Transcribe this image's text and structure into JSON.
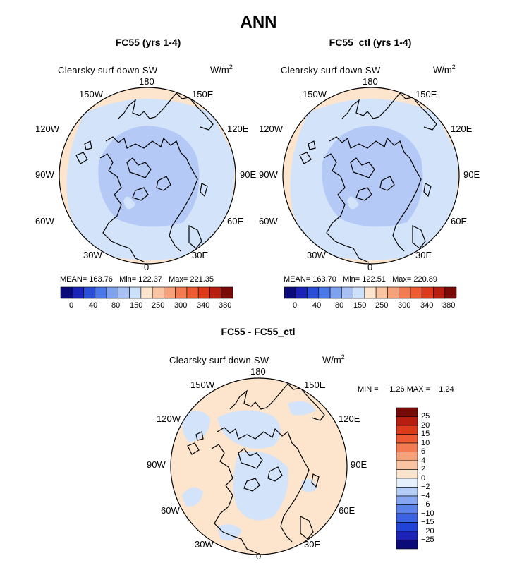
{
  "main_title": "ANN",
  "colors": {
    "abs_palette": [
      "#0a0a78",
      "#1a22b8",
      "#2a4ed8",
      "#4a78e8",
      "#7ea2ee",
      "#a8c0f2",
      "#cde0fa",
      "#fde4cc",
      "#f8c4a2",
      "#f5a27a",
      "#f27b52",
      "#ee5a32",
      "#dc3a1a",
      "#b81e10",
      "#7a0a08"
    ],
    "diff_palette": [
      "#0a0a78",
      "#1a22b8",
      "#2244d6",
      "#3b62e2",
      "#5a80ea",
      "#86a6f2",
      "#b4cdf6",
      "#e6f0fc",
      "#fde4cc",
      "#f8c4a2",
      "#f5a27a",
      "#f27b52",
      "#ee5a32",
      "#dc3a1a",
      "#b81e10",
      "#7a0a08"
    ],
    "coast": "#000000"
  },
  "panels": [
    {
      "title": "FC55 (yrs 1-4)",
      "variable": "Clearsky surf down SW",
      "units_base": "W/m",
      "units_exp": "2",
      "longitudes": [
        "180",
        "150E",
        "120E",
        "90E",
        "60E",
        "30E",
        "0",
        "30W",
        "60W",
        "90W",
        "120W",
        "150W"
      ],
      "stats": "MEAN= 163.76   Min= 122.37   Max= 221.35",
      "colorbar_labels": [
        "0",
        "40",
        "80",
        "150",
        "250",
        "300",
        "340",
        "380"
      ]
    },
    {
      "title": "FC55_ctl (yrs 1-4)",
      "variable": "Clearsky surf down SW",
      "units_base": "W/m",
      "units_exp": "2",
      "longitudes": [
        "180",
        "150E",
        "120E",
        "90E",
        "60E",
        "30E",
        "0",
        "30W",
        "60W",
        "90W",
        "120W",
        "150W"
      ],
      "stats": "MEAN= 163.70   Min= 122.51   Max= 220.89",
      "colorbar_labels": [
        "0",
        "40",
        "80",
        "150",
        "250",
        "300",
        "340",
        "380"
      ]
    },
    {
      "title": "FC55 - FC55_ctl",
      "variable": "Clearsky surf down SW",
      "units_base": "W/m",
      "units_exp": "2",
      "longitudes": [
        "180",
        "150E",
        "120E",
        "90E",
        "60E",
        "30E",
        "0",
        "30W",
        "60W",
        "90W",
        "120W",
        "150W"
      ],
      "stats": "MIN =   −1.26 MAX =    1.24",
      "colorbar_labels": [
        "25",
        "20",
        "15",
        "10",
        "6",
        "4",
        "2",
        "0",
        "−2",
        "−4",
        "−6",
        "−10",
        "−15",
        "−20",
        "−25"
      ]
    }
  ],
  "chart_data": [
    {
      "type": "heatmap",
      "projection": "north polar stereographic",
      "title": "FC55 (yrs 1-4)",
      "variable": "Clearsky surf down SW",
      "units": "W/m2",
      "mean": 163.76,
      "min": 122.37,
      "max": 221.35,
      "levels": [
        0,
        40,
        80,
        150,
        250,
        300,
        340,
        380
      ]
    },
    {
      "type": "heatmap",
      "projection": "north polar stereographic",
      "title": "FC55_ctl (yrs 1-4)",
      "variable": "Clearsky surf down SW",
      "units": "W/m2",
      "mean": 163.7,
      "min": 122.51,
      "max": 220.89,
      "levels": [
        0,
        40,
        80,
        150,
        250,
        300,
        340,
        380
      ]
    },
    {
      "type": "heatmap",
      "projection": "north polar stereographic",
      "title": "FC55 - FC55_ctl",
      "variable": "Clearsky surf down SW",
      "units": "W/m2",
      "min": -1.26,
      "max": 1.24,
      "levels": [
        -25,
        -20,
        -15,
        -10,
        -6,
        -4,
        -2,
        0,
        2,
        4,
        6,
        10,
        15,
        20,
        25
      ]
    }
  ]
}
